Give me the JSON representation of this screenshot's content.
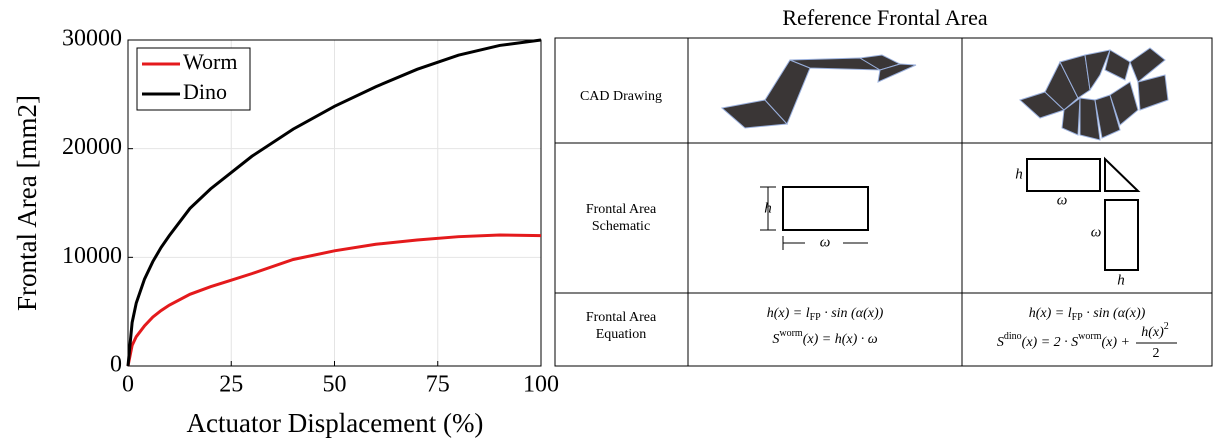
{
  "chart_data": {
    "type": "line",
    "x_label": "Actuator Displacement (%)",
    "y_label": "Frontal Area [mm2]",
    "x": [
      0,
      1,
      2,
      4,
      6,
      8,
      10,
      15,
      20,
      25,
      30,
      40,
      50,
      60,
      70,
      80,
      90,
      100
    ],
    "series": [
      {
        "name": "Worm",
        "color": "#e41a1c",
        "values": [
          0,
          1900,
          2700,
          3700,
          4500,
          5100,
          5600,
          6600,
          7300,
          7900,
          8500,
          9800,
          10600,
          11200,
          11600,
          11900,
          12050,
          12000
        ]
      },
      {
        "name": "Dino",
        "color": "#000000",
        "values": [
          0,
          4000,
          5800,
          8000,
          9600,
          10900,
          12000,
          14500,
          16300,
          17800,
          19300,
          21800,
          23900,
          25700,
          27300,
          28600,
          29500,
          30000
        ]
      }
    ],
    "xlim": [
      0,
      100
    ],
    "xticks": [
      0,
      25,
      50,
      75,
      100
    ],
    "ylim": [
      0,
      30000
    ],
    "yticks": [
      0,
      10000,
      20000,
      30000
    ],
    "grid": true,
    "legend": "upper left"
  },
  "table": {
    "title": "Reference Frontal Area",
    "rows": [
      {
        "label": [
          "CAD Drawing"
        ]
      },
      {
        "label": [
          "Frontal Area",
          "Schematic"
        ],
        "worm": {
          "height": "h",
          "width": "ω"
        },
        "dino": {
          "height": "h",
          "width": "ω",
          "height2": "ω",
          "width2": "h"
        }
      },
      {
        "label": [
          "Frontal Area",
          "Equation"
        ],
        "worm": [
          [
            "h(x) = l",
            "FP",
            " · sin (α(x))"
          ],
          [
            "S",
            "worm",
            "(x) = h(x) · ω"
          ]
        ],
        "dino": [
          [
            "h(x) = l",
            "FP",
            " · sin (α(x))"
          ],
          [
            "S",
            "dino",
            "(x) = 2 · S",
            "worm",
            "(x) +"
          ],
          [
            "h(x)",
            "2",
            "2"
          ]
        ]
      }
    ]
  }
}
